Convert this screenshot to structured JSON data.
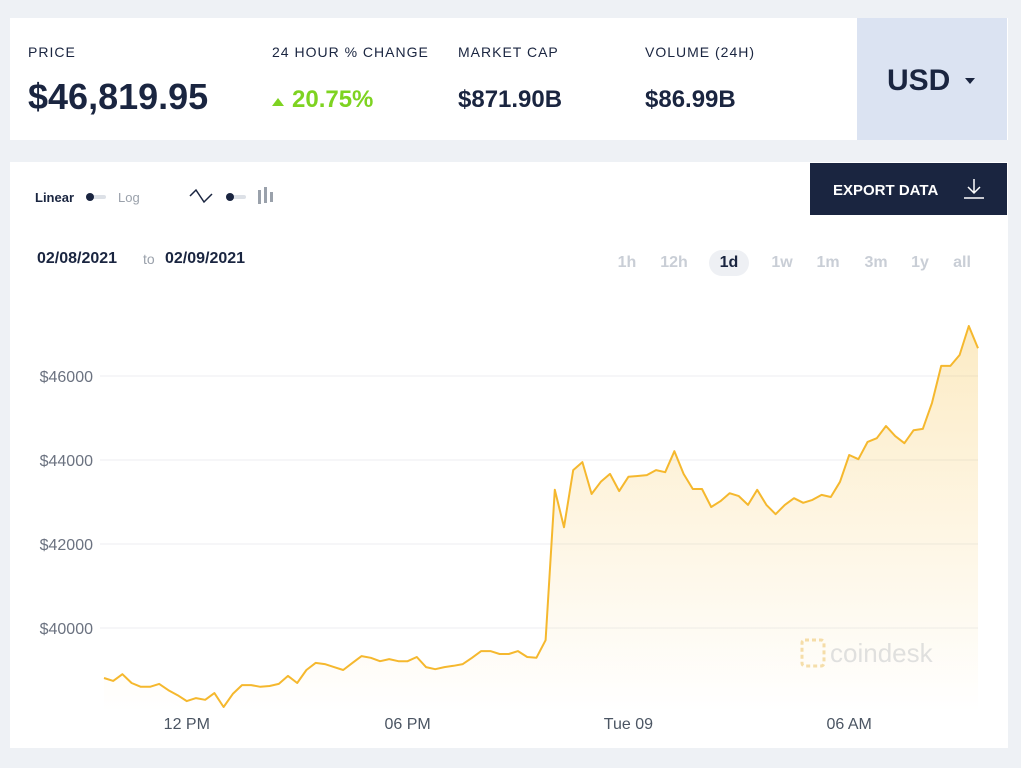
{
  "header": {
    "stats": [
      {
        "label": "PRICE",
        "value": "$46,819.95"
      },
      {
        "label": "24 HOUR % CHANGE",
        "value": "20.75%"
      },
      {
        "label": "MARKET CAP",
        "value": "$871.90B"
      },
      {
        "label": "VOLUME (24H)",
        "value": "$86.99B"
      }
    ],
    "currency": "USD"
  },
  "controls": {
    "scale_linear": "Linear",
    "scale_log": "Log",
    "export": "EXPORT DATA",
    "date_from": "02/08/2021",
    "date_sep": "to",
    "date_to": "02/09/2021",
    "ranges": [
      "1h",
      "12h",
      "1d",
      "1w",
      "1m",
      "3m",
      "1y",
      "all"
    ],
    "active_range": 2
  },
  "watermark": "coindesk",
  "chart_data": {
    "type": "line",
    "color": "#f5b82e",
    "grid": true,
    "ylim": [
      38000,
      48000
    ],
    "yticks": [
      {
        "value": 40000,
        "label": "$40000"
      },
      {
        "value": 42000,
        "label": "$42000"
      },
      {
        "value": 44000,
        "label": "$44000"
      },
      {
        "value": 46000,
        "label": "$46000"
      }
    ],
    "categories": [
      null,
      null,
      null,
      null,
      null,
      null,
      null,
      null,
      null,
      "12 PM",
      null,
      null,
      null,
      null,
      null,
      null,
      null,
      null,
      null,
      null,
      null,
      null,
      null,
      null,
      null,
      null,
      null,
      null,
      null,
      null,
      null,
      null,
      null,
      "06 PM",
      null,
      null,
      null,
      null,
      null,
      null,
      null,
      null,
      null,
      null,
      null,
      null,
      null,
      null,
      null,
      null,
      null,
      null,
      null,
      null,
      null,
      null,
      null,
      "Tue 09",
      null,
      null,
      null,
      null,
      null,
      null,
      null,
      null,
      null,
      null,
      null,
      null,
      null,
      null,
      null,
      null,
      null,
      null,
      null,
      null,
      null,
      null,
      null,
      "06 AM",
      null,
      null,
      null,
      null,
      null,
      null,
      null,
      null,
      null,
      null,
      null,
      null,
      null,
      null
    ],
    "values": [
      38810,
      38740,
      38900,
      38690,
      38600,
      38600,
      38670,
      38520,
      38400,
      38260,
      38330,
      38290,
      38450,
      38120,
      38430,
      38640,
      38640,
      38600,
      38620,
      38670,
      38860,
      38690,
      39000,
      39170,
      39140,
      39070,
      39000,
      39170,
      39330,
      39290,
      39210,
      39260,
      39210,
      39210,
      39310,
      39070,
      39020,
      39070,
      39100,
      39140,
      39290,
      39450,
      39450,
      39380,
      39380,
      39450,
      39310,
      39290,
      39710,
      43290,
      42400,
      43760,
      43950,
      43190,
      43480,
      43670,
      43260,
      43600,
      43620,
      43640,
      43760,
      43710,
      44210,
      43670,
      43310,
      43310,
      42880,
      43020,
      43210,
      43140,
      42930,
      43290,
      42930,
      42710,
      42930,
      43090,
      42980,
      43050,
      43170,
      43120,
      43480,
      44120,
      44020,
      44430,
      44520,
      44810,
      44570,
      44400,
      44710,
      44740,
      45360,
      46240,
      46240,
      46500,
      47190,
      46660
    ]
  }
}
